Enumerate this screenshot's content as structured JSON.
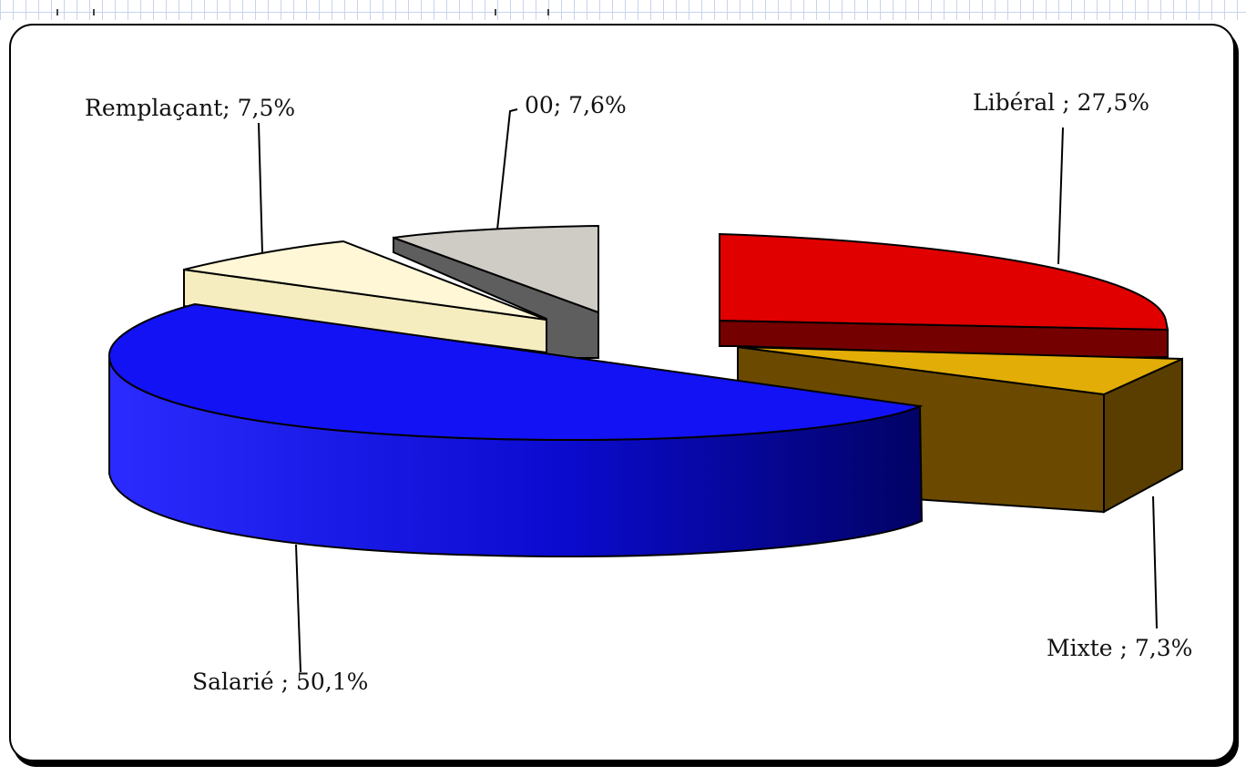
{
  "chart_data": {
    "type": "pie",
    "categories": [
      "Libéral",
      "Mixte",
      "Salarié",
      "Remplaçant",
      "00"
    ],
    "values": [
      27.5,
      7.3,
      50.1,
      7.5,
      7.6
    ],
    "labels": [
      "Libéral ; 27,5%",
      "Mixte ; 7,3%",
      "Salarié ; 50,1%",
      "Remplaçant; 7,5%",
      "00; 7,6%"
    ],
    "colors": {
      "Libéral": "#e00000",
      "Mixte": "#e0a800",
      "Salarié": "#1010ff",
      "Remplaçant": "#fff5cf",
      "00": "#cfccc6"
    },
    "style": "3d-exploded",
    "legend": "none"
  }
}
